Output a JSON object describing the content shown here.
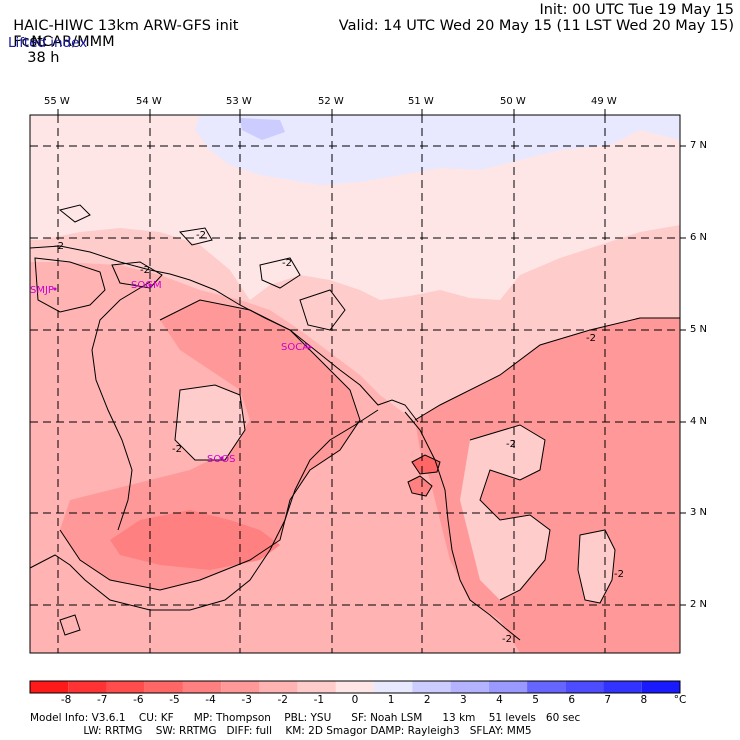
{
  "header": {
    "title": "HAIC-HIWC 13km ARW-GFS init",
    "org": "NCAR/MMM",
    "init": "Init: 00 UTC Tue 19 May 15",
    "fcst_label": "Fcst:",
    "fcst_value": "38 h",
    "valid": "Valid: 14 UTC Wed 20 May 15 (11 LST Wed 20 May 15)",
    "field": "Lifted index"
  },
  "map": {
    "lon_labels": [
      "55 W",
      "54 W",
      "53 W",
      "52 W",
      "51 W",
      "50 W",
      "49 W"
    ],
    "lat_labels": [
      "7 N",
      "6 N",
      "5 N",
      "4 N",
      "3 N",
      "2 N"
    ],
    "stations": [
      "SMJP",
      "SOGM",
      "SOCA",
      "SOOS"
    ],
    "contour_label": "-2"
  },
  "colorbar": {
    "ticks": [
      "-8",
      "-7",
      "-6",
      "-5",
      "-4",
      "-3",
      "-2",
      "-1",
      "0",
      "1",
      "2",
      "3",
      "4",
      "5",
      "6",
      "7",
      "8"
    ],
    "unit": "°C",
    "colors": [
      "#ff1a1a",
      "#ff3333",
      "#ff4d4d",
      "#ff6666",
      "#ff8080",
      "#ff9999",
      "#ffb3b3",
      "#ffcccc",
      "#ffe6e6",
      "#e8e8ff",
      "#ccccff",
      "#b3b3ff",
      "#9999ff",
      "#6666ff",
      "#4d4dff",
      "#3333ff",
      "#1a1aff"
    ]
  },
  "footer": {
    "line1": "Model Info: V3.6.1    CU: KF      MP: Thompson    PBL: YSU      SF: Noah LSM      13 km    51 levels   60 sec",
    "line2": "                LW: RRTMG    SW: RRTMG   DIFF: full    KM: 2D Smagor DAMP: Rayleigh3   SFLAY: MM5"
  }
}
